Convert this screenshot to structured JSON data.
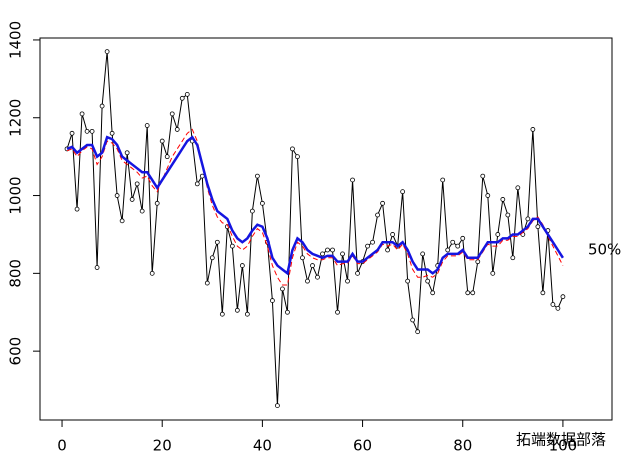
{
  "chart_data": {
    "type": "line",
    "x": [
      1,
      2,
      3,
      4,
      5,
      6,
      7,
      8,
      9,
      10,
      11,
      12,
      13,
      14,
      15,
      16,
      17,
      18,
      19,
      20,
      21,
      22,
      23,
      24,
      25,
      26,
      27,
      28,
      29,
      30,
      31,
      32,
      33,
      34,
      35,
      36,
      37,
      38,
      39,
      40,
      41,
      42,
      43,
      44,
      45,
      46,
      47,
      48,
      49,
      50,
      51,
      52,
      53,
      54,
      55,
      56,
      57,
      58,
      59,
      60,
      61,
      62,
      63,
      64,
      65,
      66,
      67,
      68,
      69,
      70,
      71,
      72,
      73,
      74,
      75,
      76,
      77,
      78,
      79,
      80,
      81,
      82,
      83,
      84,
      85,
      86,
      87,
      88,
      89,
      90,
      91,
      92,
      93,
      94,
      95,
      96,
      97,
      98,
      99,
      100
    ],
    "series": [
      {
        "color": "#000000",
        "points": true,
        "dashed": false,
        "width": 1,
        "values": [
          1120,
          1160,
          965,
          1210,
          1165,
          1165,
          815,
          1230,
          1370,
          1160,
          1000,
          935,
          1110,
          990,
          1030,
          960,
          1180,
          800,
          980,
          1140,
          1100,
          1210,
          1170,
          1250,
          1260,
          1140,
          1030,
          1050,
          775,
          840,
          880,
          695,
          920,
          870,
          705,
          820,
          695,
          960,
          1050,
          980,
          880,
          730,
          460,
          760,
          700,
          1120,
          1100,
          840,
          780,
          820,
          790,
          850,
          860,
          860,
          700,
          850,
          780,
          1040,
          800,
          830,
          870,
          880,
          950,
          980,
          860,
          900,
          870,
          1010,
          780,
          680,
          650,
          850,
          780,
          750,
          820,
          1040,
          860,
          880,
          870,
          890,
          750,
          750,
          830,
          1050,
          1000,
          800,
          900,
          990,
          950,
          840,
          1020,
          900,
          940,
          1170,
          920,
          750,
          910,
          720,
          710,
          740
        ]
      },
      {
        "color": "#ff0000",
        "points": false,
        "dashed": true,
        "width": 1,
        "values": [
          1115,
          1120,
          1100,
          1115,
          1125,
          1120,
          1080,
          1100,
          1140,
          1135,
          1120,
          1090,
          1080,
          1070,
          1060,
          1045,
          1050,
          1025,
          1010,
          1040,
          1070,
          1100,
          1120,
          1140,
          1160,
          1170,
          1140,
          1080,
          1020,
          975,
          945,
          930,
          925,
          895,
          870,
          860,
          870,
          895,
          915,
          905,
          870,
          820,
          790,
          770,
          770,
          840,
          880,
          870,
          850,
          840,
          835,
          835,
          840,
          840,
          820,
          825,
          825,
          845,
          825,
          825,
          835,
          845,
          855,
          875,
          870,
          875,
          860,
          875,
          850,
          810,
          790,
          790,
          795,
          790,
          800,
          830,
          845,
          845,
          845,
          855,
          835,
          835,
          835,
          855,
          875,
          870,
          870,
          885,
          885,
          895,
          895,
          905,
          915,
          935,
          945,
          925,
          895,
          870,
          845,
          820
        ]
      },
      {
        "color": "#1515e0",
        "points": false,
        "dashed": false,
        "width": 2.5,
        "values": [
          1120,
          1125,
          1110,
          1120,
          1130,
          1130,
          1100,
          1110,
          1150,
          1145,
          1130,
          1100,
          1090,
          1080,
          1070,
          1060,
          1060,
          1040,
          1020,
          1040,
          1060,
          1080,
          1100,
          1120,
          1140,
          1150,
          1130,
          1080,
          1030,
          990,
          960,
          950,
          940,
          910,
          890,
          880,
          890,
          910,
          925,
          920,
          890,
          840,
          820,
          810,
          800,
          860,
          890,
          880,
          860,
          850,
          845,
          840,
          845,
          845,
          830,
          830,
          830,
          850,
          830,
          830,
          840,
          850,
          860,
          880,
          880,
          880,
          870,
          880,
          860,
          830,
          810,
          810,
          810,
          800,
          810,
          840,
          850,
          850,
          850,
          860,
          840,
          840,
          840,
          860,
          880,
          880,
          880,
          890,
          890,
          900,
          900,
          910,
          920,
          940,
          940,
          920,
          900,
          880,
          860,
          840
        ]
      }
    ],
    "annotations": [
      {
        "text": "50%",
        "x": 105,
        "y": 860,
        "color": "#1515e0"
      }
    ],
    "watermark": "拓端数据部落",
    "xlim": [
      -4.4,
      109.8
    ],
    "ylim": [
      423,
      1405
    ],
    "xticks": [
      0,
      20,
      40,
      60,
      80,
      100
    ],
    "yticks": [
      600,
      800,
      1000,
      1200,
      1400
    ]
  }
}
